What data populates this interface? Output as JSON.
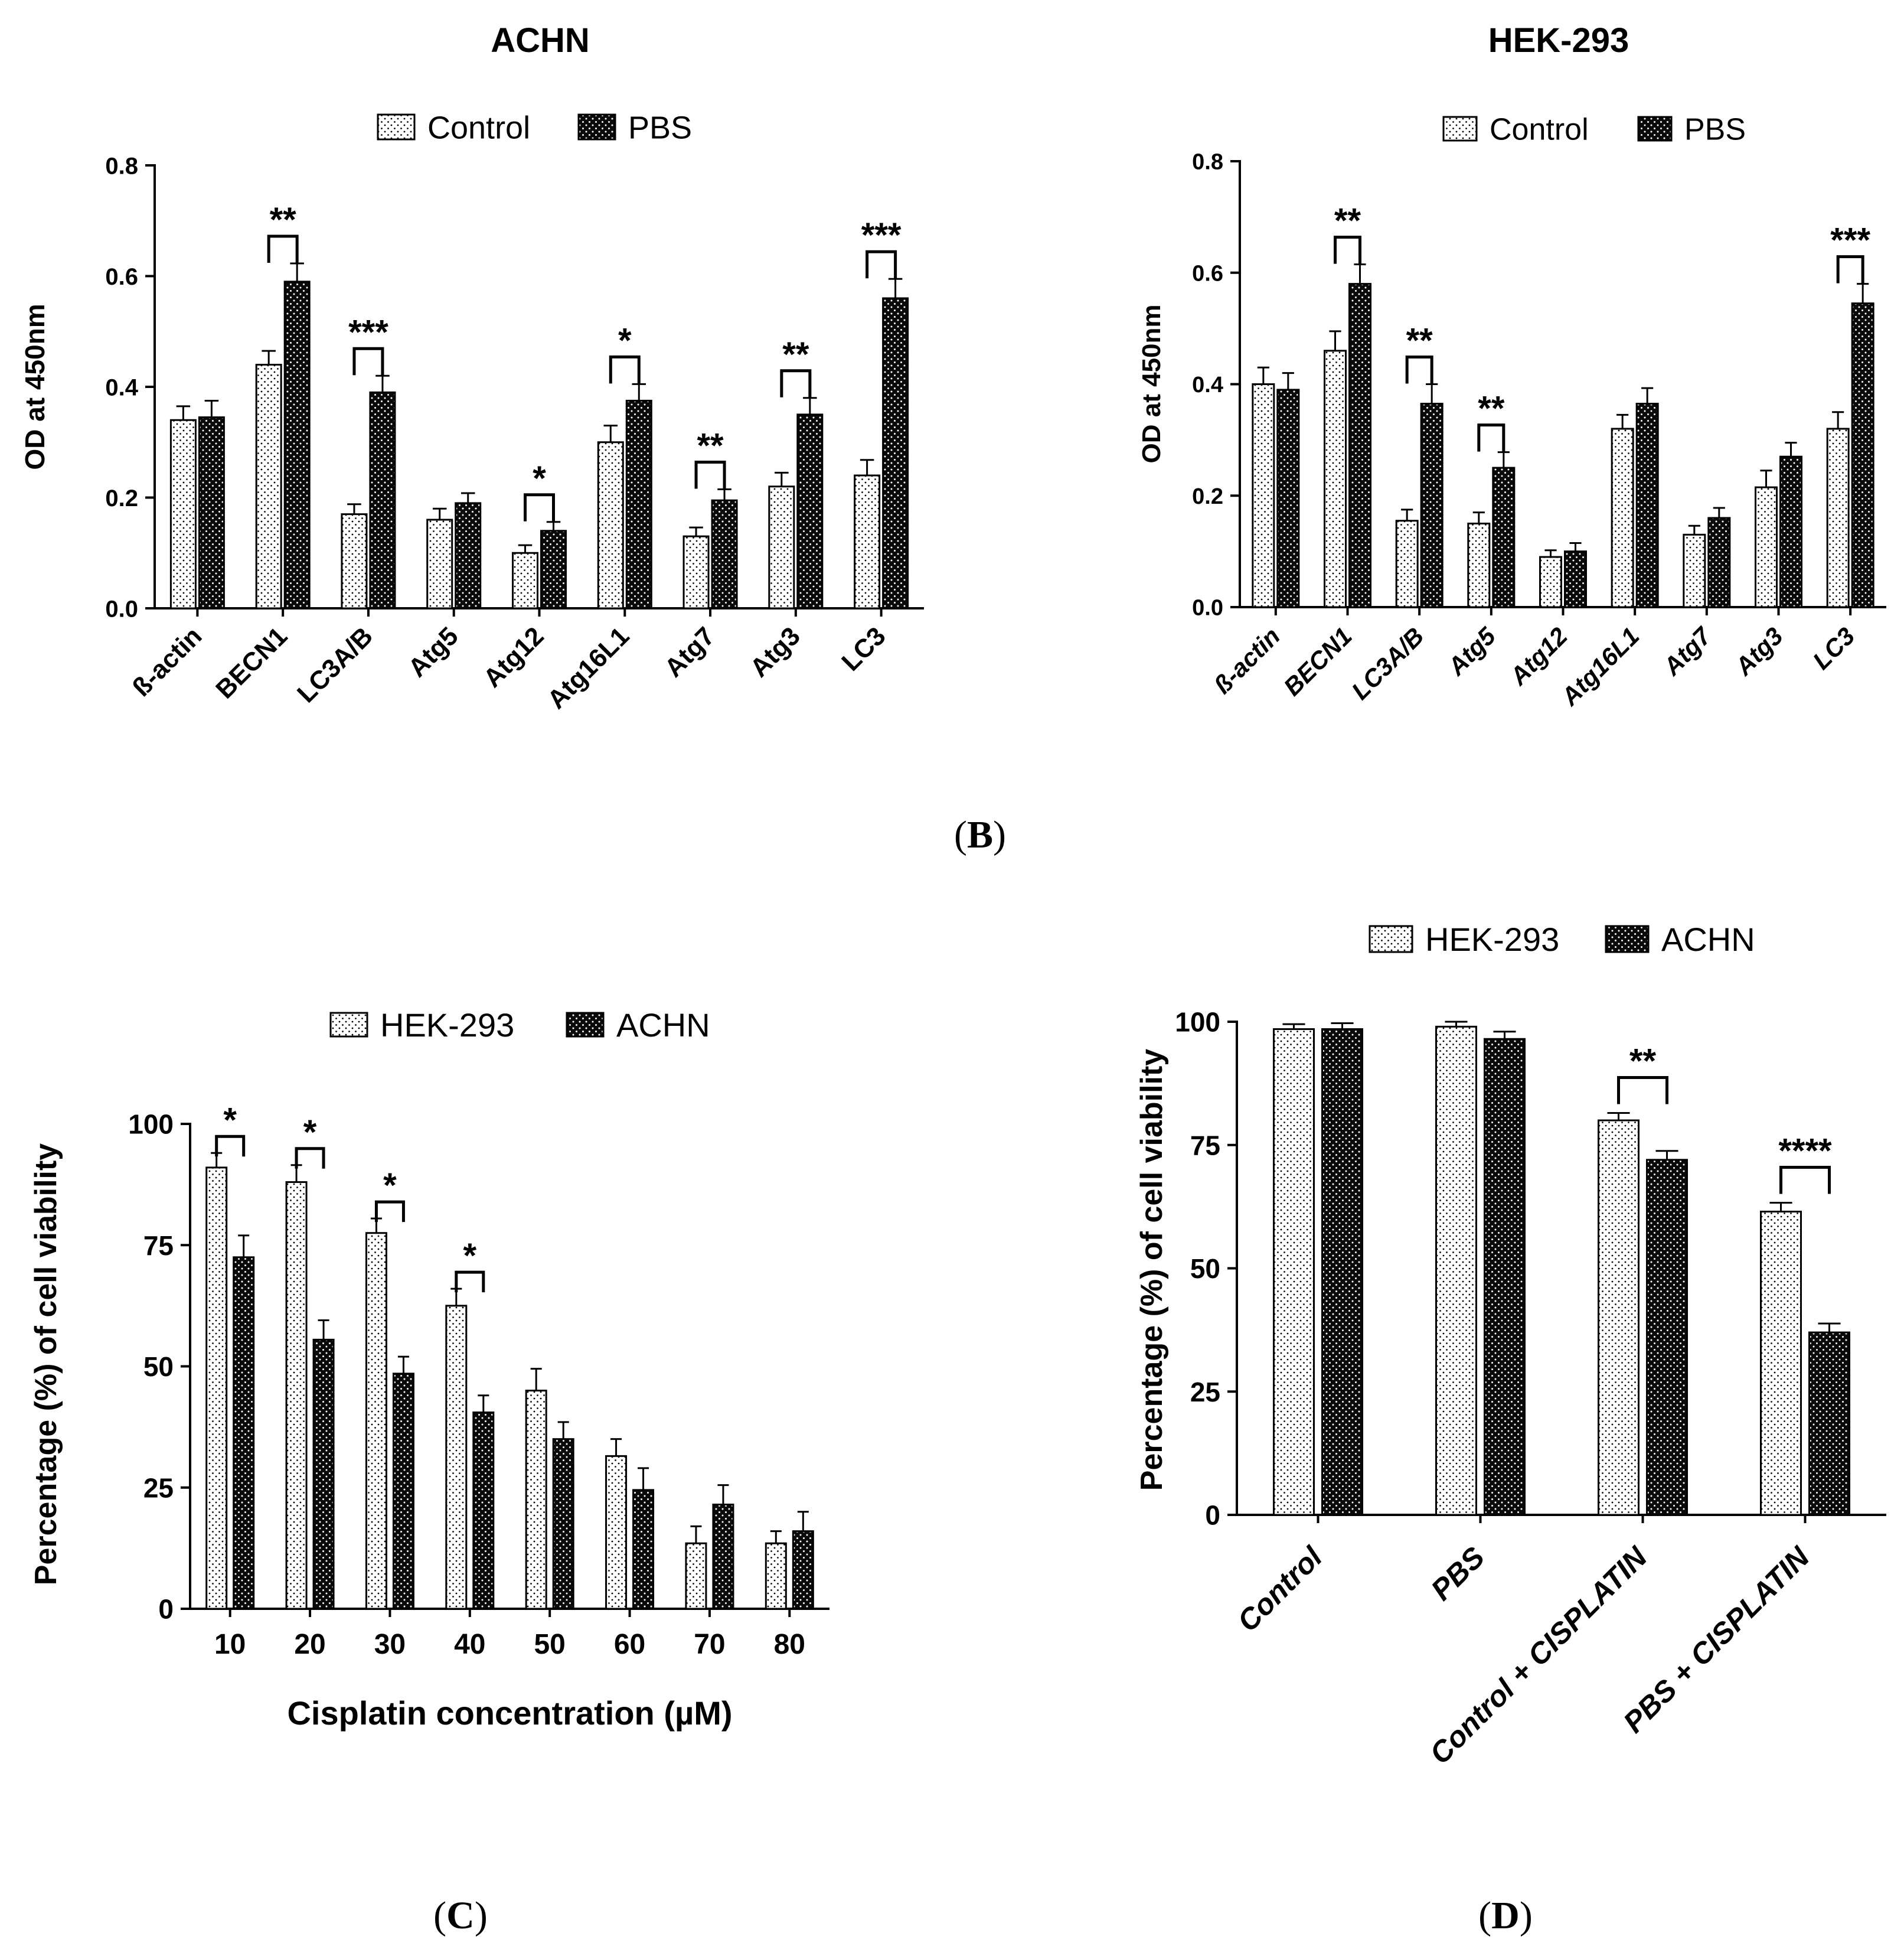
{
  "figure": {
    "label_B": "B",
    "label_C": "C",
    "label_D": "D"
  },
  "patterns": {
    "dotted": "dotted-fill",
    "dark": "dark-dotted-fill"
  },
  "colors": {
    "dark_fill": "#111111",
    "light_fill": "#ffffff",
    "stroke": "#000000"
  },
  "chart_data": [
    {
      "id": "achn",
      "type": "bar",
      "title": "ACHN",
      "ylabel": "OD at 450nm",
      "xlabel": "",
      "ylim": [
        0,
        0.8
      ],
      "yticks": [
        "0.0",
        "0.2",
        "0.4",
        "0.6",
        "0.8"
      ],
      "tick_values": [
        0,
        0.2,
        0.4,
        0.6,
        0.8
      ],
      "categories": [
        "ß-actin",
        "BECN1",
        "LC3A/B",
        "Atg5",
        "Atg12",
        "Atg16L1",
        "Atg7",
        "Atg3",
        "LC3"
      ],
      "series": [
        {
          "name": "Control",
          "values": [
            0.34,
            0.44,
            0.17,
            0.16,
            0.1,
            0.3,
            0.13,
            0.22,
            0.24
          ],
          "errors": [
            0.025,
            0.025,
            0.018,
            0.02,
            0.014,
            0.03,
            0.016,
            0.025,
            0.028
          ]
        },
        {
          "name": "PBS",
          "values": [
            0.345,
            0.59,
            0.39,
            0.19,
            0.14,
            0.375,
            0.195,
            0.35,
            0.56
          ],
          "errors": [
            0.03,
            0.033,
            0.03,
            0.018,
            0.016,
            0.03,
            0.02,
            0.03,
            0.035
          ]
        }
      ],
      "significance": [
        {
          "index": 1,
          "label": "**"
        },
        {
          "index": 2,
          "label": "***"
        },
        {
          "index": 4,
          "label": "*"
        },
        {
          "index": 5,
          "label": "*"
        },
        {
          "index": 6,
          "label": "**"
        },
        {
          "index": 7,
          "label": "**"
        },
        {
          "index": 8,
          "label": "***"
        }
      ],
      "legend": "top-center"
    },
    {
      "id": "hek",
      "type": "bar",
      "title": "HEK-293",
      "ylabel": "OD at 450nm",
      "xlabel": "",
      "ylim": [
        0,
        0.8
      ],
      "yticks": [
        "0.0",
        "0.2",
        "0.4",
        "0.6",
        "0.8"
      ],
      "tick_values": [
        0,
        0.2,
        0.4,
        0.6,
        0.8
      ],
      "categories": [
        "ß-actin",
        "BECN1",
        "LC3A/B",
        "Atg5",
        "Atg12",
        "Atg16L1",
        "Atg7",
        "Atg3",
        "LC3"
      ],
      "series": [
        {
          "name": "Control",
          "values": [
            0.4,
            0.46,
            0.155,
            0.15,
            0.09,
            0.32,
            0.13,
            0.215,
            0.32
          ],
          "errors": [
            0.03,
            0.035,
            0.02,
            0.02,
            0.012,
            0.025,
            0.016,
            0.03,
            0.03
          ]
        },
        {
          "name": "PBS",
          "values": [
            0.39,
            0.58,
            0.365,
            0.25,
            0.1,
            0.365,
            0.16,
            0.27,
            0.545
          ],
          "errors": [
            0.03,
            0.035,
            0.035,
            0.028,
            0.015,
            0.028,
            0.018,
            0.025,
            0.035
          ]
        }
      ],
      "significance": [
        {
          "index": 1,
          "label": "**"
        },
        {
          "index": 2,
          "label": "**"
        },
        {
          "index": 3,
          "label": "**"
        },
        {
          "index": 8,
          "label": "***"
        }
      ],
      "legend": "top-center"
    },
    {
      "id": "cis",
      "type": "bar",
      "title": "",
      "ylabel": "Percentage (%) of cell viability",
      "xlabel": "Cisplatin concentration (µM)",
      "ylim": [
        0,
        100
      ],
      "yticks": [
        "0",
        "25",
        "50",
        "75",
        "100"
      ],
      "tick_values": [
        0,
        25,
        50,
        75,
        100
      ],
      "categories": [
        "10",
        "20",
        "30",
        "40",
        "50",
        "60",
        "70",
        "80"
      ],
      "series": [
        {
          "name": "HEK-293",
          "values": [
            91,
            88,
            77.5,
            62.5,
            45,
            31.5,
            13.5,
            13.5
          ],
          "errors": [
            3,
            3.5,
            3,
            3.5,
            4.5,
            3.5,
            3.5,
            2.5
          ]
        },
        {
          "name": "ACHN",
          "values": [
            72.5,
            55.5,
            48.5,
            40.5,
            35,
            24.5,
            21.5,
            16
          ],
          "errors": [
            4.5,
            4,
            3.5,
            3.5,
            3.5,
            4.5,
            4,
            4
          ]
        }
      ],
      "significance": [
        {
          "index": 0,
          "label": "*"
        },
        {
          "index": 1,
          "label": "*"
        },
        {
          "index": 2,
          "label": "*"
        },
        {
          "index": 3,
          "label": "*"
        }
      ],
      "legend": "top-center"
    },
    {
      "id": "via",
      "type": "bar",
      "title": "",
      "ylabel": "Percentage (%) of cell viability",
      "xlabel": "",
      "ylim": [
        0,
        100
      ],
      "yticks": [
        "0",
        "25",
        "50",
        "75",
        "100"
      ],
      "tick_values": [
        0,
        25,
        50,
        75,
        100
      ],
      "categories": [
        "Control",
        "PBS",
        "Control + CISPLATIN",
        "PBS + CISPLATIN"
      ],
      "series": [
        {
          "name": "HEK-293",
          "values": [
            98.5,
            99,
            80,
            61.5
          ],
          "errors": [
            1,
            1,
            1.5,
            1.8
          ]
        },
        {
          "name": "ACHN",
          "values": [
            98.5,
            96.5,
            72,
            37
          ],
          "errors": [
            1.2,
            1.5,
            1.8,
            1.8
          ]
        }
      ],
      "significance": [
        {
          "index": 2,
          "label": "**"
        },
        {
          "index": 3,
          "label": "****"
        }
      ],
      "legend": "top-center"
    }
  ]
}
